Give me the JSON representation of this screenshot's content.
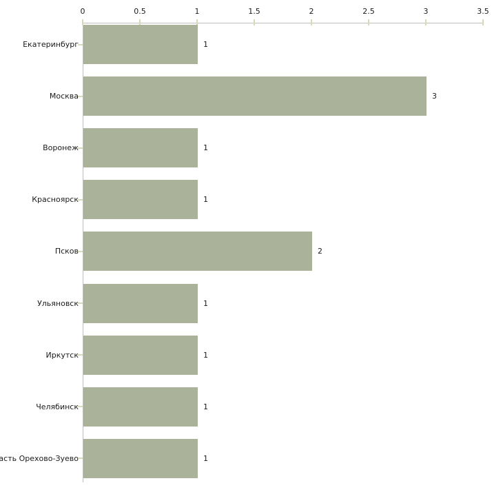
{
  "chart_data": {
    "type": "bar",
    "orientation": "horizontal",
    "title": "",
    "categories": [
      "Екатеринбург",
      "Москва",
      "Воронеж",
      "Красноярск",
      "Псков",
      "Ульяновск",
      "Иркутск",
      "Челябинск",
      "ласть Орехово-Зуево"
    ],
    "values": [
      1,
      3,
      1,
      1,
      2,
      1,
      1,
      1,
      1
    ],
    "value_labels": [
      "1",
      "3",
      "1",
      "1",
      "2",
      "1",
      "1",
      "1",
      "1"
    ],
    "x_ticks": [
      "0",
      "0.5",
      "1",
      "1.5",
      "2",
      "2.5",
      "3",
      "3.5"
    ],
    "x_tick_values": [
      0,
      0.5,
      1,
      1.5,
      2,
      2.5,
      3,
      3.5
    ],
    "xlim": [
      0,
      3.5
    ],
    "grid": false,
    "legend": "none",
    "colors": {
      "bar_fill": "#aab399",
      "axis_line": "#bdbdbd",
      "tick_mark": "#d9d9b8",
      "label_text": "#1a1a1a",
      "background": "#ffffff"
    }
  }
}
